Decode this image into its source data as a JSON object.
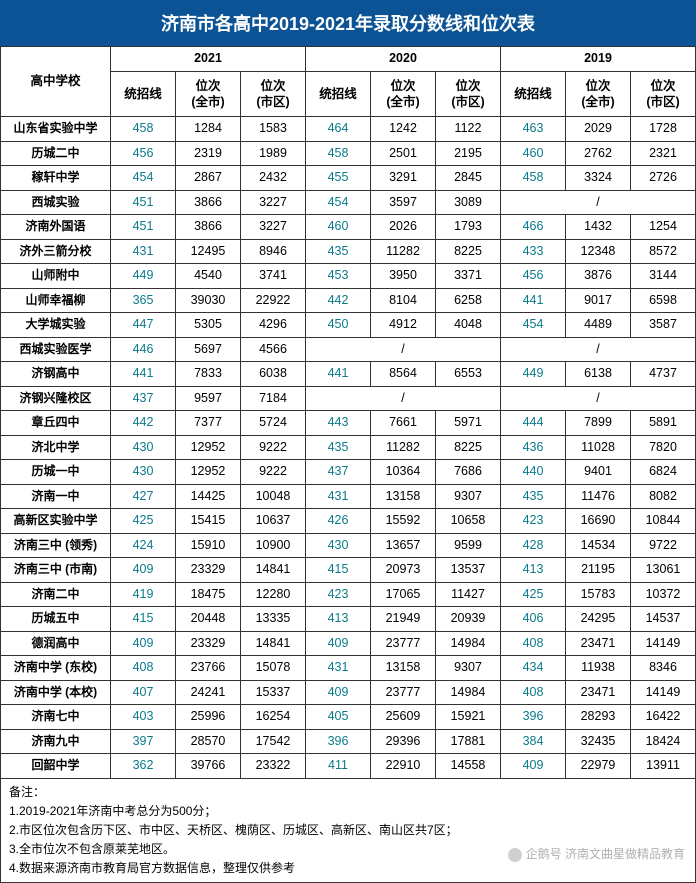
{
  "title": "济南市各高中2019-2021年录取分数线和位次表",
  "title_bg": "#0b5394",
  "title_color": "#ffffff",
  "title_fontsize": 18,
  "score_color": "#0b7b8a",
  "rank_color": "#000000",
  "border_color": "#333333",
  "header": {
    "school_label": "高中学校",
    "years": [
      "2021",
      "2020",
      "2019"
    ],
    "sub_labels": [
      "统招线",
      "位次\n(全市)",
      "位次\n(市区)"
    ]
  },
  "rows": [
    {
      "school": "山东省实验中学",
      "y2021": [
        "458",
        "1284",
        "1583"
      ],
      "y2020": [
        "464",
        "1242",
        "1122"
      ],
      "y2019": [
        "463",
        "2029",
        "1728"
      ]
    },
    {
      "school": "历城二中",
      "y2021": [
        "456",
        "2319",
        "1989"
      ],
      "y2020": [
        "458",
        "2501",
        "2195"
      ],
      "y2019": [
        "460",
        "2762",
        "2321"
      ]
    },
    {
      "school": "稼轩中学",
      "y2021": [
        "454",
        "2867",
        "2432"
      ],
      "y2020": [
        "455",
        "3291",
        "2845"
      ],
      "y2019": [
        "458",
        "3324",
        "2726"
      ]
    },
    {
      "school": "西城实验",
      "y2021": [
        "451",
        "3866",
        "3227"
      ],
      "y2020": [
        "454",
        "3597",
        "3089"
      ],
      "y2019": [
        "/",
        "/",
        "/"
      ],
      "merge2019": true
    },
    {
      "school": "济南外国语",
      "y2021": [
        "451",
        "3866",
        "3227"
      ],
      "y2020": [
        "460",
        "2026",
        "1793"
      ],
      "y2019": [
        "466",
        "1432",
        "1254"
      ]
    },
    {
      "school": "济外三箭分校",
      "y2021": [
        "431",
        "12495",
        "8946"
      ],
      "y2020": [
        "435",
        "11282",
        "8225"
      ],
      "y2019": [
        "433",
        "12348",
        "8572"
      ]
    },
    {
      "school": "山师附中",
      "y2021": [
        "449",
        "4540",
        "3741"
      ],
      "y2020": [
        "453",
        "3950",
        "3371"
      ],
      "y2019": [
        "456",
        "3876",
        "3144"
      ]
    },
    {
      "school": "山师幸福柳",
      "y2021": [
        "365",
        "39030",
        "22922"
      ],
      "y2020": [
        "442",
        "8104",
        "6258"
      ],
      "y2019": [
        "441",
        "9017",
        "6598"
      ]
    },
    {
      "school": "大学城实验",
      "y2021": [
        "447",
        "5305",
        "4296"
      ],
      "y2020": [
        "450",
        "4912",
        "4048"
      ],
      "y2019": [
        "454",
        "4489",
        "3587"
      ]
    },
    {
      "school": "西城实验医学",
      "y2021": [
        "446",
        "5697",
        "4566"
      ],
      "y2020": [
        "/",
        "/",
        "/"
      ],
      "merge2020": true,
      "y2019": [
        "/",
        "/",
        "/"
      ],
      "merge2019": true
    },
    {
      "school": "济钢高中",
      "y2021": [
        "441",
        "7833",
        "6038"
      ],
      "y2020": [
        "441",
        "8564",
        "6553"
      ],
      "y2019": [
        "449",
        "6138",
        "4737"
      ]
    },
    {
      "school": "济钢兴隆校区",
      "y2021": [
        "437",
        "9597",
        "7184"
      ],
      "y2020": [
        "/",
        "/",
        "/"
      ],
      "merge2020": true,
      "y2019": [
        "/",
        "/",
        "/"
      ],
      "merge2019": true
    },
    {
      "school": "章丘四中",
      "y2021": [
        "442",
        "7377",
        "5724"
      ],
      "y2020": [
        "443",
        "7661",
        "5971"
      ],
      "y2019": [
        "444",
        "7899",
        "5891"
      ]
    },
    {
      "school": "济北中学",
      "y2021": [
        "430",
        "12952",
        "9222"
      ],
      "y2020": [
        "435",
        "11282",
        "8225"
      ],
      "y2019": [
        "436",
        "11028",
        "7820"
      ]
    },
    {
      "school": "历城一中",
      "y2021": [
        "430",
        "12952",
        "9222"
      ],
      "y2020": [
        "437",
        "10364",
        "7686"
      ],
      "y2019": [
        "440",
        "9401",
        "6824"
      ]
    },
    {
      "school": "济南一中",
      "y2021": [
        "427",
        "14425",
        "10048"
      ],
      "y2020": [
        "431",
        "13158",
        "9307"
      ],
      "y2019": [
        "435",
        "11476",
        "8082"
      ]
    },
    {
      "school": "高新区实验中学",
      "y2021": [
        "425",
        "15415",
        "10637"
      ],
      "y2020": [
        "426",
        "15592",
        "10658"
      ],
      "y2019": [
        "423",
        "16690",
        "10844"
      ]
    },
    {
      "school": "济南三中 (领秀)",
      "y2021": [
        "424",
        "15910",
        "10900"
      ],
      "y2020": [
        "430",
        "13657",
        "9599"
      ],
      "y2019": [
        "428",
        "14534",
        "9722"
      ]
    },
    {
      "school": "济南三中 (市南)",
      "y2021": [
        "409",
        "23329",
        "14841"
      ],
      "y2020": [
        "415",
        "20973",
        "13537"
      ],
      "y2019": [
        "413",
        "21195",
        "13061"
      ]
    },
    {
      "school": "济南二中",
      "y2021": [
        "419",
        "18475",
        "12280"
      ],
      "y2020": [
        "423",
        "17065",
        "11427"
      ],
      "y2019": [
        "425",
        "15783",
        "10372"
      ]
    },
    {
      "school": "历城五中",
      "y2021": [
        "415",
        "20448",
        "13335"
      ],
      "y2020": [
        "413",
        "21949",
        "20939"
      ],
      "y2019": [
        "406",
        "24295",
        "14537"
      ]
    },
    {
      "school": "德润高中",
      "y2021": [
        "409",
        "23329",
        "14841"
      ],
      "y2020": [
        "409",
        "23777",
        "14984"
      ],
      "y2019": [
        "408",
        "23471",
        "14149"
      ]
    },
    {
      "school": "济南中学 (东校)",
      "y2021": [
        "408",
        "23766",
        "15078"
      ],
      "y2020": [
        "431",
        "13158",
        "9307"
      ],
      "y2019": [
        "434",
        "11938",
        "8346"
      ]
    },
    {
      "school": "济南中学 (本校)",
      "y2021": [
        "407",
        "24241",
        "15337"
      ],
      "y2020": [
        "409",
        "23777",
        "14984"
      ],
      "y2019": [
        "408",
        "23471",
        "14149"
      ]
    },
    {
      "school": "济南七中",
      "y2021": [
        "403",
        "25996",
        "16254"
      ],
      "y2020": [
        "405",
        "25609",
        "15921"
      ],
      "y2019": [
        "396",
        "28293",
        "16422"
      ]
    },
    {
      "school": "济南九中",
      "y2021": [
        "397",
        "28570",
        "17542"
      ],
      "y2020": [
        "396",
        "29396",
        "17881"
      ],
      "y2019": [
        "384",
        "32435",
        "18424"
      ]
    },
    {
      "school": "回韶中学",
      "y2021": [
        "362",
        "39766",
        "23322"
      ],
      "y2020": [
        "411",
        "22910",
        "14558"
      ],
      "y2019": [
        "409",
        "22979",
        "13911"
      ]
    }
  ],
  "notes": {
    "title": "备注：",
    "lines": [
      "1.2019-2021年济南中考总分为500分；",
      "2.市区位次包含历下区、市中区、天桥区、槐荫区、历城区、高新区、南山区共7区；",
      "3.全市位次不包含原莱芜地区。",
      "4.数据来源济南市教育局官方数据信息，整理仅供参考"
    ]
  },
  "watermark": "企鹅号 济南文曲星做精品教育"
}
